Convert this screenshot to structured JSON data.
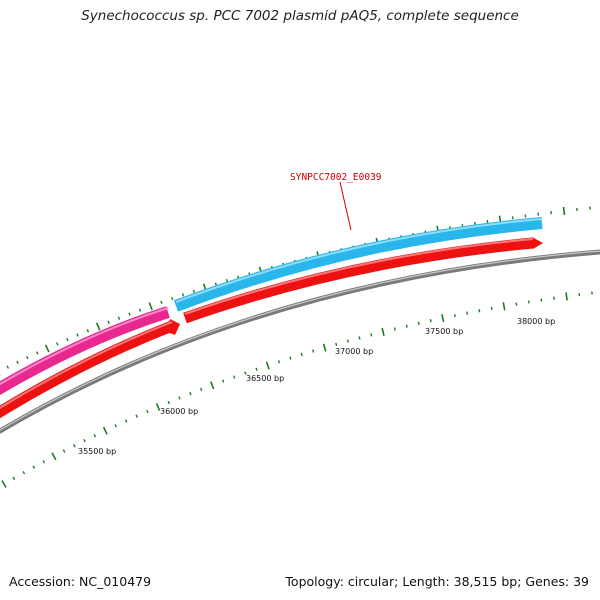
{
  "title": "Synechococcus sp. PCC 7002 plasmid pAQ5, complete sequence",
  "footer": {
    "accession": "Accession: NC_010479",
    "summary": "Topology: circular; Length: 38,515 bp; Genes: 39"
  },
  "colors": {
    "backbone": "#8a8a8a",
    "forward_gene": "#29b6ea",
    "forward_gene_alt": "#e8288f",
    "reverse_gene": "#ee1111",
    "ticks": "#1f7a1f",
    "label": "#cc0000"
  },
  "ruler": {
    "labels": [
      "35500 bp",
      "36000 bp",
      "36500 bp",
      "37000 bp",
      "37500 bp",
      "38000 bp"
    ]
  },
  "gene_label": "SYNPCC7002_E0039"
}
